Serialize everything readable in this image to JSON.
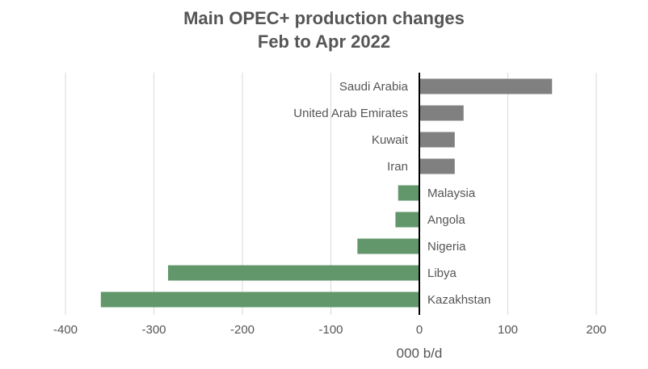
{
  "chart_data": {
    "type": "bar",
    "orientation": "horizontal",
    "title": "Main OPEC+ production changes",
    "subtitle": "Feb to Apr 2022",
    "xlabel": "000 b/d",
    "ylabel": "",
    "xlim": [
      -400,
      200
    ],
    "xticks": [
      "-400",
      "-300",
      "-200",
      "-100",
      "0",
      "100",
      "200"
    ],
    "grid": true,
    "categories": [
      "Saudi Arabia",
      "United Arab Emirates",
      "Kuwait",
      "Iran",
      "Malaysia",
      "Angola",
      "Nigeria",
      "Libya",
      "Kazakhstan"
    ],
    "values": [
      150,
      50,
      40,
      40,
      -24,
      -27,
      -70,
      -284,
      -360
    ],
    "colors": {
      "positive": "#808080",
      "negative": "#62976b",
      "grid": "#d9d9d9",
      "axis": "#000000",
      "text": "#555555"
    }
  }
}
